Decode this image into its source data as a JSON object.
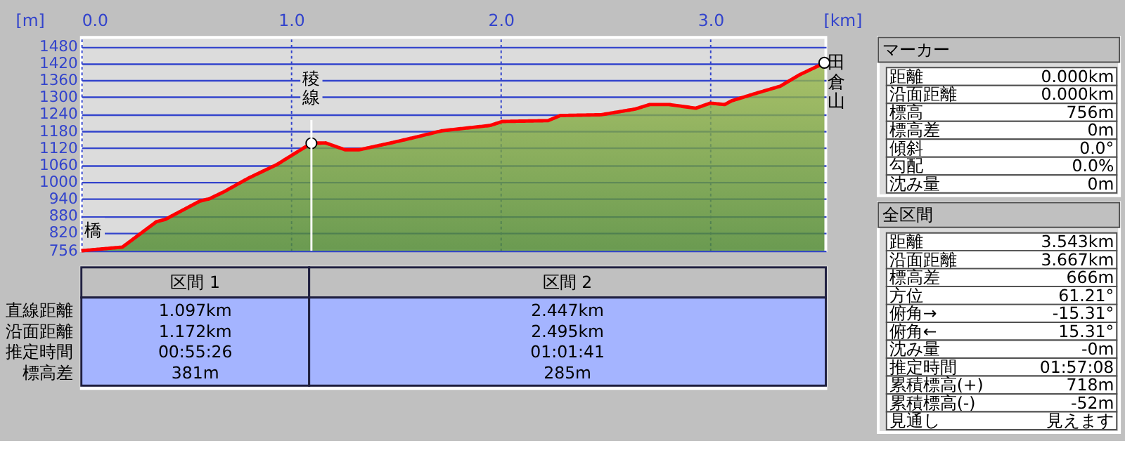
{
  "chart_data": [
    {
      "type": "area",
      "xlabel": "[km]",
      "ylabel": "[m]",
      "xlim": [
        0,
        3.55
      ],
      "xticks": [
        {
          "value": 0,
          "label": "0.0"
        },
        {
          "value": 1,
          "label": "1.0"
        },
        {
          "value": 2,
          "label": "2.0"
        },
        {
          "value": 3,
          "label": "3.0"
        }
      ],
      "ylim": [
        756,
        1512
      ],
      "yticks": [
        756,
        820,
        880,
        940,
        1000,
        1060,
        1120,
        1180,
        1240,
        1300,
        1360,
        1420,
        1480
      ],
      "grid": true,
      "series": [
        {
          "type": "area",
          "color": "#ff0000",
          "x": [
            0,
            0.196,
            0.358,
            0.4,
            0.565,
            0.61,
            0.68,
            0.796,
            0.934,
            1.003,
            1.097,
            1.165,
            1.257,
            1.326,
            1.488,
            1.603,
            1.718,
            1.95,
            2.007,
            2.226,
            2.284,
            2.48,
            2.641,
            2.71,
            2.803,
            2.93,
            2.999,
            3.068,
            3.1,
            3.218,
            3.333,
            3.426,
            3.517,
            3.543
          ],
          "values": [
            756,
            769,
            859,
            867,
            932,
            940,
            965,
            1013,
            1062,
            1094,
            1137,
            1138,
            1114,
            1114,
            1140,
            1160,
            1181,
            1200,
            1214,
            1217,
            1235,
            1238,
            1258,
            1274,
            1274,
            1261,
            1279,
            1274,
            1287,
            1314,
            1339,
            1380,
            1412,
            1422
          ]
        },
        {
          "type": "scatter",
          "color": "#ffffff",
          "marker": "circle",
          "x": [
            1.097,
            3.543
          ],
          "values": [
            1137,
            1422
          ]
        }
      ],
      "ref_lines": [
        {
          "axis": "x",
          "value": 1.097,
          "label": "稜線",
          "color": "#ffffff"
        }
      ],
      "annotations": [
        {
          "text": "橋",
          "x": 0,
          "y": 756
        },
        {
          "text": "田倉山",
          "x": 3.543,
          "y": 1422
        }
      ]
    },
    {
      "type": "other",
      "categories": [
        "区間 1",
        "区間 2"
      ],
      "annotations": [
        "直線距離",
        "1.097km",
        "2.447km",
        "沿面距離",
        "1.172km",
        "2.495km",
        "推定時間",
        "00:55:26",
        "01:01:41",
        "標高差",
        "381m",
        "285m"
      ]
    },
    {
      "type": "other",
      "title": "マーカー",
      "annotations": [
        "距離",
        "0.000km",
        "沿面距離",
        "0.000km",
        "標高",
        "756m",
        "標高差",
        "0m",
        "傾斜",
        "0.0°",
        "勾配",
        "0.0%",
        "沈み量",
        "0m"
      ]
    },
    {
      "type": "other",
      "title": "全区間",
      "annotations": [
        "距離",
        "3.543km",
        "沿面距離",
        "3.667km",
        "標高差",
        "666m",
        "方位",
        "61.21°",
        "俯角→",
        "-15.31°",
        "俯角←",
        "15.31°",
        "沈み量",
        "-0m",
        "推定時間",
        "01:57:08",
        "累積標高(+)",
        "718m",
        "累積標高(-)",
        "-52m",
        "見通し",
        "見えます"
      ]
    }
  ]
}
